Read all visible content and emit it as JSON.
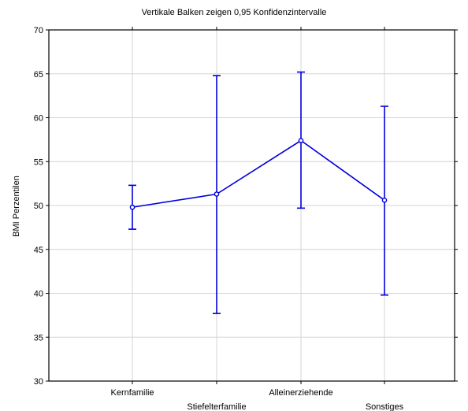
{
  "chart_data": {
    "type": "line",
    "title": "Vertikale Balken zeigen 0,95 Konfidenzintervalle",
    "xlabel": "",
    "ylabel": "BMI Perzentilen",
    "ylim": [
      30,
      70
    ],
    "yticks": [
      "30",
      "35",
      "40",
      "45",
      "50",
      "55",
      "60",
      "65",
      "70"
    ],
    "grid": true,
    "categories": [
      "Kernfamilie",
      "Stiefelterfamilie",
      "Alleinerziehende",
      "Sonstiges"
    ],
    "series": [
      {
        "color": "#0000dd",
        "values": [
          49.8,
          51.3,
          57.4,
          50.6
        ],
        "ci_lower": [
          47.3,
          37.7,
          49.7,
          39.8
        ],
        "ci_upper": [
          52.3,
          64.8,
          65.2,
          61.3
        ]
      }
    ]
  }
}
